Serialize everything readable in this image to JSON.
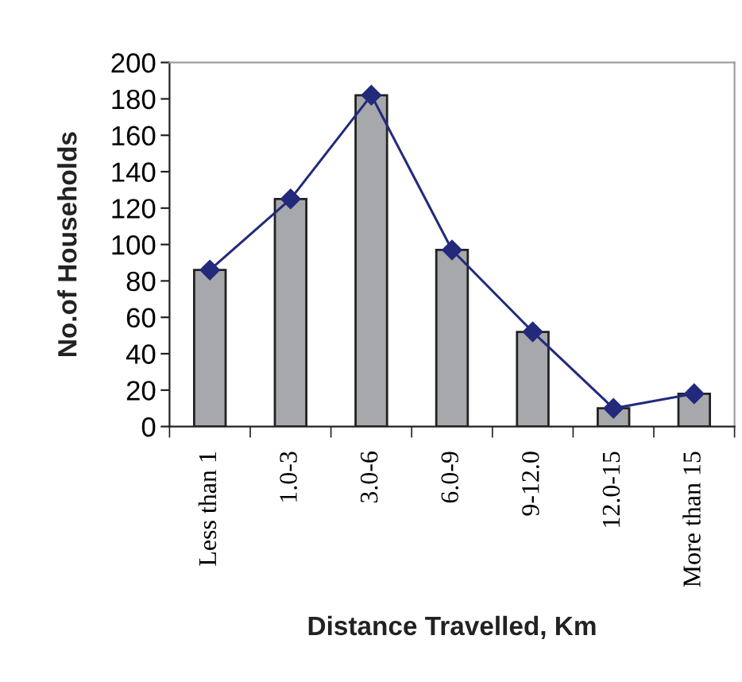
{
  "chart_data": {
    "type": "bar",
    "xlabel": "Distance Travelled, Km",
    "ylabel": "No.of Households",
    "categories": [
      "Less than 1",
      "1.0-3",
      "3.0-6",
      "6.0-9",
      "9-12.0",
      "12.0-15",
      "More than 15"
    ],
    "series": [
      {
        "color": "#a6a8ab",
        "values": [
          86,
          125,
          182,
          97,
          52,
          10,
          18
        ]
      },
      {
        "type": "line",
        "color": "#232a7c",
        "marker": "diamond",
        "values": [
          86,
          125,
          182,
          97,
          52,
          10,
          18
        ]
      }
    ],
    "ylim": [
      0,
      200
    ],
    "yticks": [
      0,
      20,
      40,
      60,
      80,
      100,
      120,
      140,
      160,
      180,
      200
    ]
  }
}
